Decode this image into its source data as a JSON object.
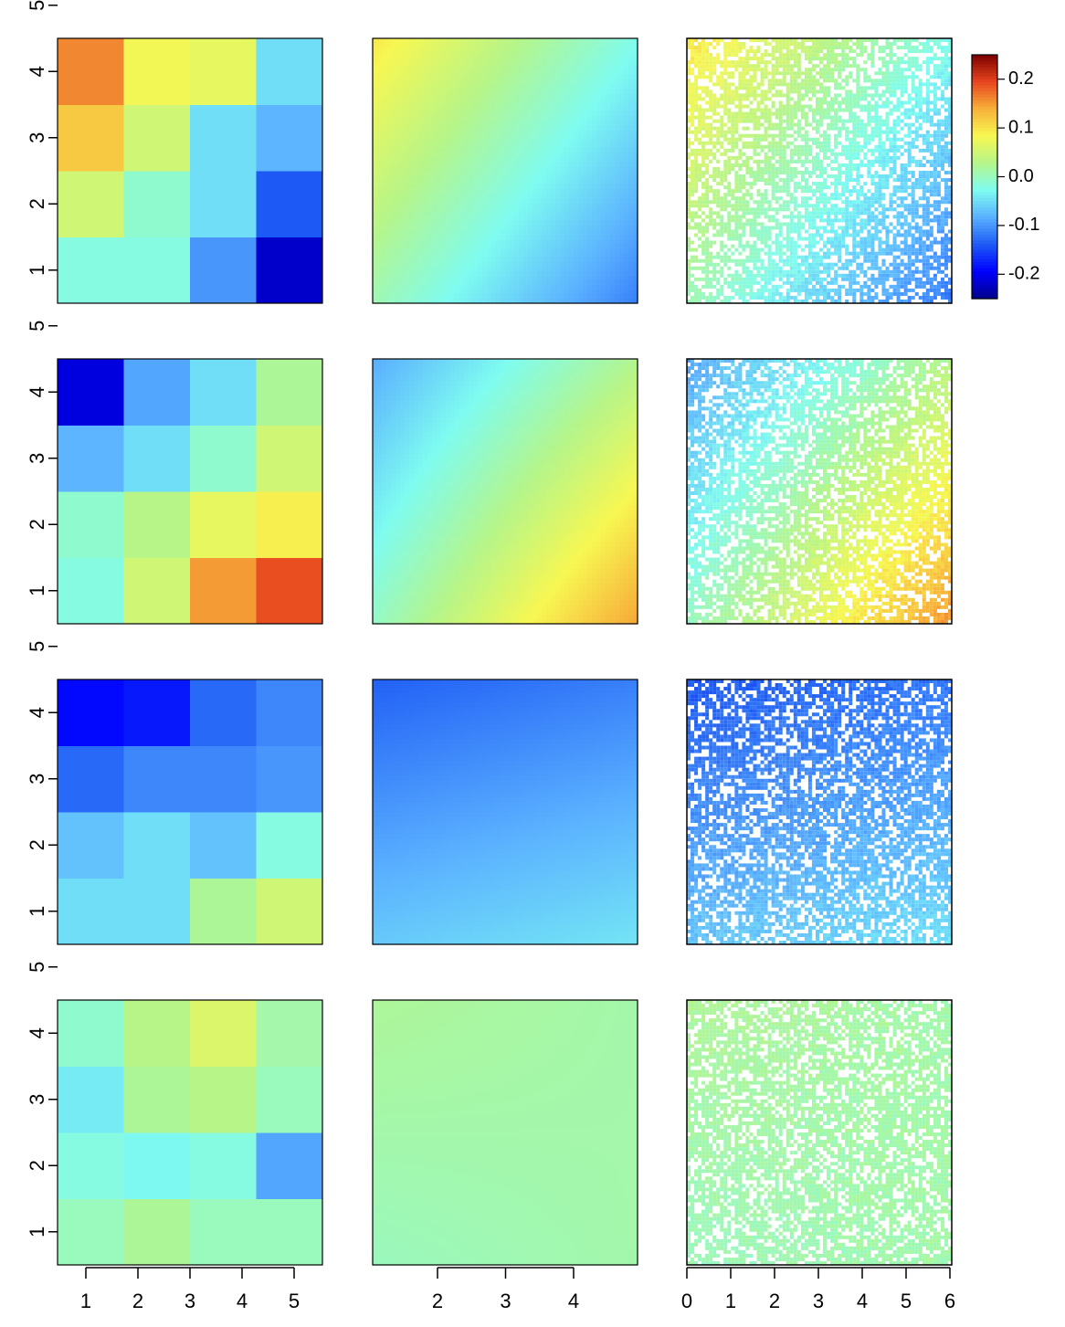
{
  "chart_data": {
    "type": "heatmap",
    "layout": "4 rows x 3 columns of heatmap panels with a shared color bar",
    "colorbar": {
      "range": [
        -0.25,
        0.25
      ],
      "ticks": [
        0.2,
        0.1,
        0.0,
        -0.1,
        -0.2
      ],
      "tick_labels": [
        "0.2",
        "0.1",
        "0.0",
        "-0.1",
        "-0.2"
      ],
      "colors": [
        "#00008b",
        "#0000ff",
        "#1e5bf5",
        "#5ab0ff",
        "#7ffcf0",
        "#b5f58a",
        "#f7f752",
        "#f7b03a",
        "#e8451f",
        "#7a0000"
      ]
    },
    "axes": {
      "grid_y_ticks": [
        "1",
        "2",
        "3",
        "4",
        "5"
      ],
      "grid_x_ticks": [
        "1",
        "2",
        "3",
        "4",
        "5"
      ],
      "smooth_x_ticks": [
        "2",
        "3",
        "4"
      ],
      "points_x_ticks": [
        "0",
        "1",
        "2",
        "3",
        "4",
        "5",
        "6"
      ]
    },
    "panels": [
      {
        "row": 1,
        "grid_values": [
          [
            -0.02,
            -0.02,
            -0.1,
            -0.22
          ],
          [
            0.05,
            -0.01,
            -0.05,
            -0.14
          ],
          [
            0.12,
            0.05,
            -0.05,
            -0.08
          ],
          [
            0.16,
            0.08,
            0.07,
            -0.05
          ]
        ],
        "field_coef": {
          "c": -0.01,
          "x": -0.12,
          "y": 0.09,
          "xy": 0.0
        },
        "missing_fraction": 0.3
      },
      {
        "row": 2,
        "grid_values": [
          [
            -0.02,
            0.05,
            0.15,
            0.19
          ],
          [
            -0.01,
            0.03,
            0.07,
            0.09
          ],
          [
            -0.08,
            -0.05,
            -0.01,
            0.05
          ],
          [
            -0.21,
            -0.09,
            -0.05,
            0.02
          ]
        ],
        "field_coef": {
          "c": 0.02,
          "x": 0.13,
          "y": -0.1,
          "xy": -0.04
        },
        "missing_fraction": 0.3
      },
      {
        "row": 3,
        "grid_values": [
          [
            -0.05,
            -0.05,
            0.02,
            0.05
          ],
          [
            -0.07,
            -0.05,
            -0.07,
            -0.02
          ],
          [
            -0.13,
            -0.11,
            -0.11,
            -0.1
          ],
          [
            -0.19,
            -0.18,
            -0.13,
            -0.11
          ]
        ],
        "field_coef": {
          "c": -0.09,
          "x": 0.02,
          "y": -0.07,
          "xy": 0.0
        },
        "missing_fraction": 0.3
      },
      {
        "row": 4,
        "grid_values": [
          [
            0.0,
            0.02,
            0.0,
            0.0
          ],
          [
            -0.02,
            -0.03,
            -0.02,
            -0.09
          ],
          [
            -0.04,
            0.02,
            0.03,
            0.0
          ],
          [
            -0.01,
            0.03,
            0.06,
            0.01
          ]
        ],
        "field_coef": {
          "c": 0.01,
          "x": 0.0,
          "y": 0.01,
          "xy": -0.02
        },
        "missing_fraction": 0.3
      }
    ]
  }
}
